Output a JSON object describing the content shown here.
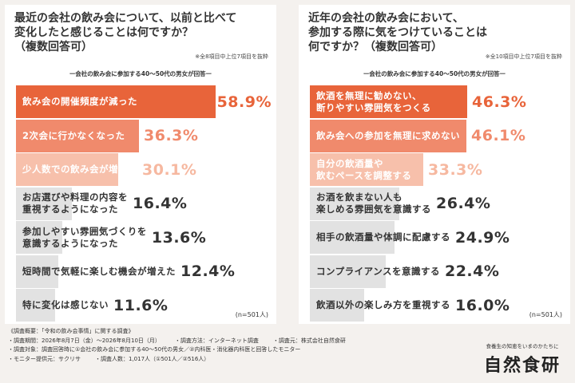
{
  "chart_data": [
    {
      "type": "bar",
      "title": "最近の会社の飲み会について、以前と比べて\n変化したと感じることは何ですか？\n（複数回答可）",
      "note": "※全8項目中上位7項目を抜粋",
      "subtitle": "ー会社の飲み会に参加する40～50代の男女が回答ー",
      "n_label": "(n=501人)",
      "categories": [
        "飲み会の開催頻度が減った",
        "2次会に行かなくなった",
        "少人数での飲み会が増えた",
        "お店選びや料理の内容を\n重視するようになった",
        "参加しやすい雰囲気づくりを\n意識するようになった",
        "短時間で気軽に楽しむ機会が増えた",
        "特に変化は感じない"
      ],
      "values": [
        58.9,
        36.3,
        30.1,
        16.4,
        13.6,
        12.4,
        11.6
      ],
      "value_labels": [
        "58.9%",
        "36.3%",
        "30.1%",
        "16.4%",
        "13.6%",
        "12.4%",
        "11.6%"
      ],
      "unit": "%"
    },
    {
      "type": "bar",
      "title": "近年の会社の飲み会において、\n参加する際に気をつけていることは\n何ですか？（複数回答可）",
      "note": "※全10項目中上位7項目を抜粋",
      "subtitle": "ー会社の飲み会に参加する40～50代の男女が回答ー",
      "n_label": "(n=501人)",
      "categories": [
        "飲酒を無理に勧めない、\n断りやすい雰囲気をつくる",
        "飲み会への参加を無理に求めない",
        "自分の飲酒量や\n飲むペースを調整する",
        "お酒を飲まない人も\n楽しめる雰囲気を意識する",
        "相手の飲酒量や体調に配慮する",
        "コンプライアンスを意識する",
        "飲酒以外の楽しみ方を重視する"
      ],
      "values": [
        46.3,
        46.1,
        33.3,
        26.4,
        24.9,
        22.4,
        16.0
      ],
      "value_labels": [
        "46.3%",
        "46.1%",
        "33.3%",
        "26.4%",
        "24.9%",
        "22.4%",
        "16.0%"
      ],
      "unit": "%"
    }
  ],
  "colors": {
    "top1": "#e8643a",
    "top2": "#f08a6c",
    "top3": "#f7c0ab",
    "rest": "#e2e2e2",
    "top1_value": "#e8643a",
    "top2_value": "#f08a6c",
    "top3_value": "#f6b8a0",
    "rest_value": "#333333",
    "label_light": "#ffffff",
    "label_dark": "#333333"
  },
  "footer": {
    "overview": "《調査概要：「令和の飲み会事情」に関する調査》",
    "period": "・調査期間：2026年8月7日（金）～2026年8月10日（月）",
    "method": "・調査方法：インターネット調査",
    "source": "・調査元：株式会社自然食研",
    "target": "・調査対象：調査回答時に①会社の飲み会に参加する40～50代の男女／②内科医・消化器内科医と回答したモニター",
    "provider": "・モニター提供元：サクリサ",
    "sample": "・調査人数：1,017人（①501人／②516人）"
  },
  "logo": {
    "tagline": "食養生の知恵をいまのかたちに",
    "name": "自然食研"
  }
}
